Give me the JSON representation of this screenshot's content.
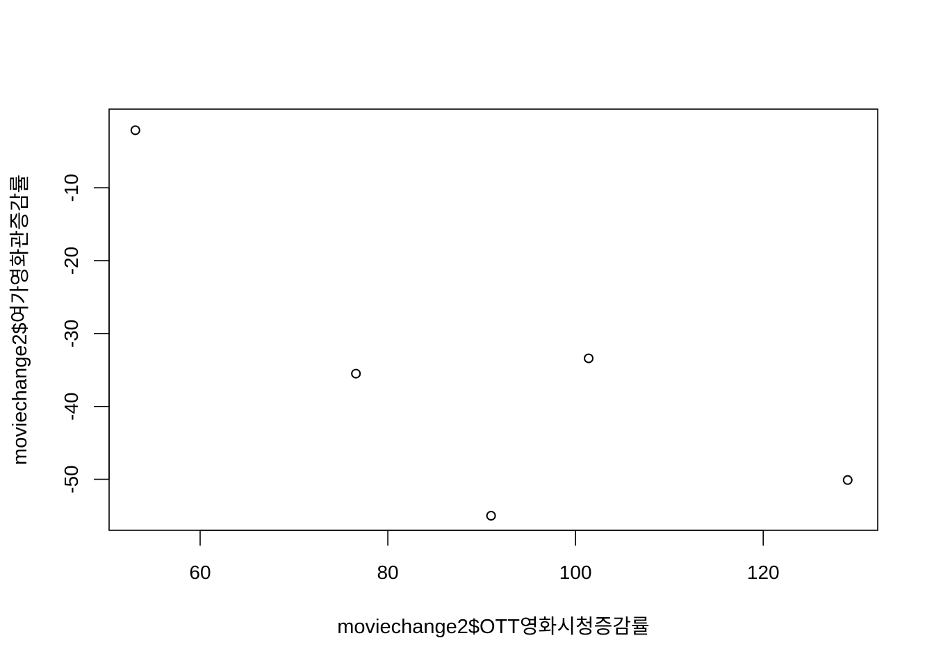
{
  "chart_data": {
    "type": "scatter",
    "title": "",
    "xlabel": "moviechange2$OTT영화시청증감률",
    "ylabel": "moviechange2$여가영화관증감률",
    "x_ticks": [
      60,
      80,
      100,
      120
    ],
    "y_ticks": [
      -10,
      -20,
      -30,
      -40,
      -50
    ],
    "xlim": [
      50.3,
      132.2
    ],
    "ylim": [
      -57.0,
      0.8
    ],
    "grid": false,
    "legend": "none",
    "marker": "open-circle",
    "series": [
      {
        "points": [
          {
            "x": 53.1,
            "y": -2.1
          },
          {
            "x": 76.6,
            "y": -35.5
          },
          {
            "x": 91.0,
            "y": -55.0
          },
          {
            "x": 101.4,
            "y": -33.4
          },
          {
            "x": 129.0,
            "y": -50.1
          }
        ]
      }
    ],
    "colors": {
      "marker_stroke": "#000000",
      "axis": "#000000",
      "background": "#ffffff"
    }
  }
}
